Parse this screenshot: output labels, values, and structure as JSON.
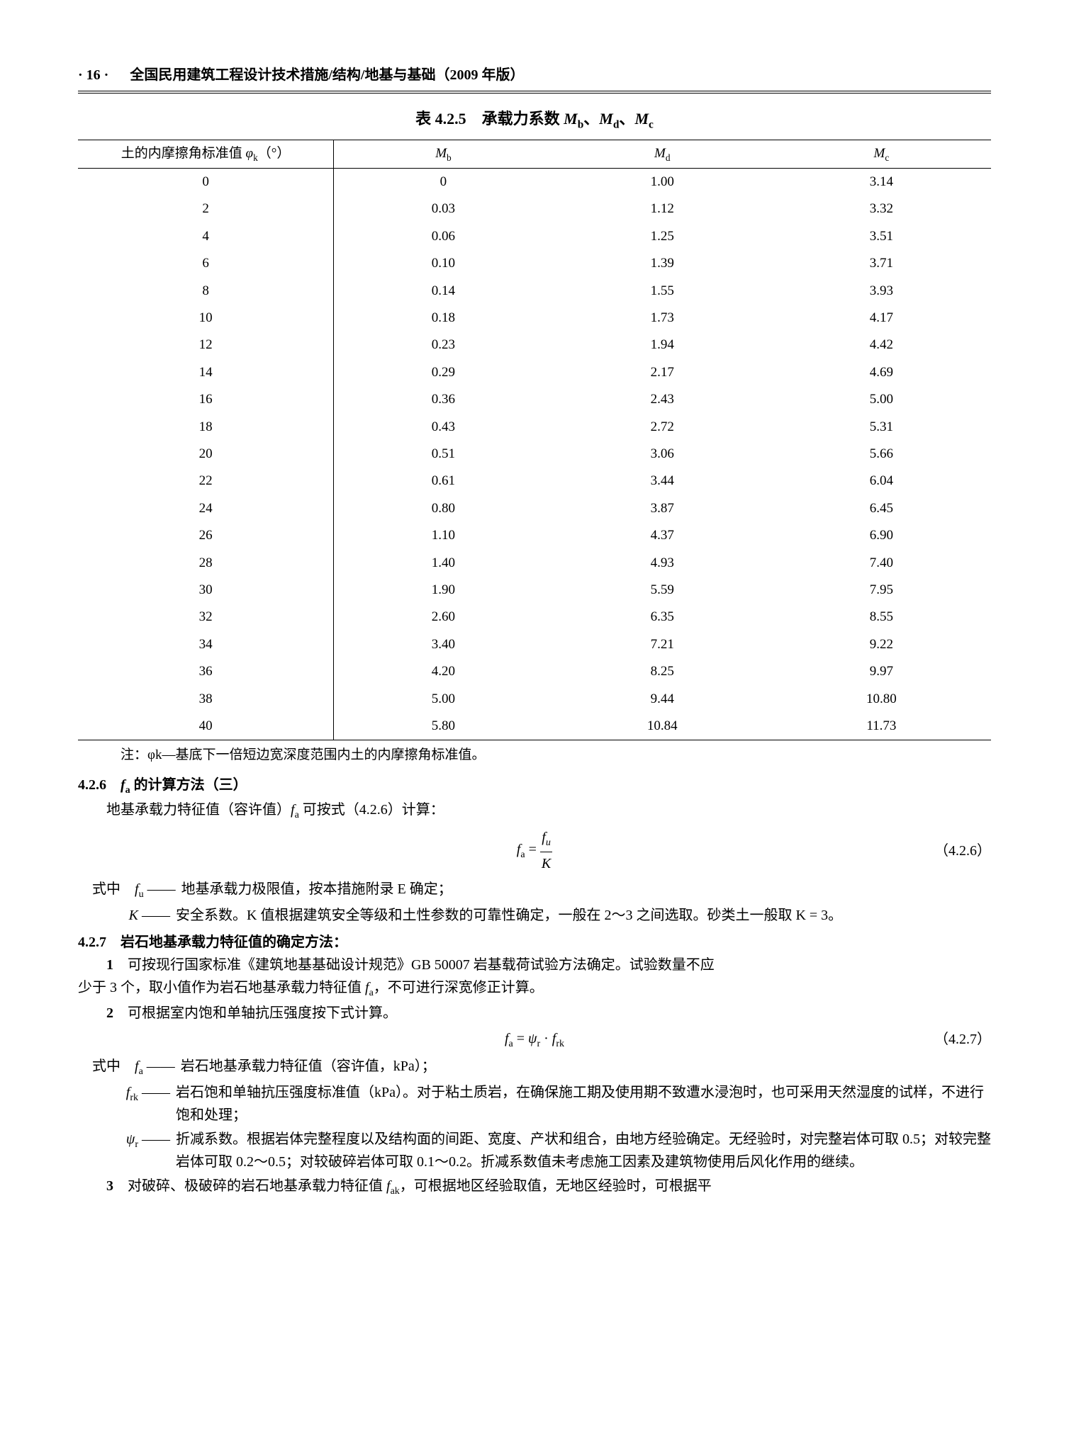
{
  "page_number": "· 16 ·",
  "header_text": "全国民用建筑工程设计技术措施/结构/地基与基础（2009 年版）",
  "table": {
    "title_prefix": "表 4.2.5　承载力系数 ",
    "title_vars": "Mb、Md、Mc",
    "columns": [
      "土的内摩擦角标准值 φk（°）",
      "Mb",
      "Md",
      "Mc"
    ],
    "rows": [
      [
        "0",
        "0",
        "1.00",
        "3.14"
      ],
      [
        "2",
        "0.03",
        "1.12",
        "3.32"
      ],
      [
        "4",
        "0.06",
        "1.25",
        "3.51"
      ],
      [
        "6",
        "0.10",
        "1.39",
        "3.71"
      ],
      [
        "8",
        "0.14",
        "1.55",
        "3.93"
      ],
      [
        "10",
        "0.18",
        "1.73",
        "4.17"
      ],
      [
        "12",
        "0.23",
        "1.94",
        "4.42"
      ],
      [
        "14",
        "0.29",
        "2.17",
        "4.69"
      ],
      [
        "16",
        "0.36",
        "2.43",
        "5.00"
      ],
      [
        "18",
        "0.43",
        "2.72",
        "5.31"
      ],
      [
        "20",
        "0.51",
        "3.06",
        "5.66"
      ],
      [
        "22",
        "0.61",
        "3.44",
        "6.04"
      ],
      [
        "24",
        "0.80",
        "3.87",
        "6.45"
      ],
      [
        "26",
        "1.10",
        "4.37",
        "6.90"
      ],
      [
        "28",
        "1.40",
        "4.93",
        "7.40"
      ],
      [
        "30",
        "1.90",
        "5.59",
        "7.95"
      ],
      [
        "32",
        "2.60",
        "6.35",
        "8.55"
      ],
      [
        "34",
        "3.40",
        "7.21",
        "9.22"
      ],
      [
        "36",
        "4.20",
        "8.25",
        "9.97"
      ],
      [
        "38",
        "5.00",
        "9.44",
        "10.80"
      ],
      [
        "40",
        "5.80",
        "10.84",
        "11.73"
      ]
    ],
    "note": "注：φk—基底下一倍短边宽深度范围内土的内摩擦角标准值。"
  },
  "sec426": {
    "head": "4.2.6　fa 的计算方法（三）",
    "intro": "地基承载力特征值（容许值）fa 可按式（4.2.6）计算：",
    "eq_lhs": "fa =",
    "eq_num": "（4.2.6）",
    "def_lead": "式中",
    "defs": [
      {
        "sym": "fu ——",
        "txt": "地基承载力极限值，按本措施附录 E 确定；"
      },
      {
        "sym": "K ——",
        "txt": "安全系数。K 值根据建筑安全等级和土性参数的可靠性确定，一般在 2～3 之间选取。砂类土一般取 K = 3。"
      }
    ]
  },
  "sec427": {
    "head": "4.2.7　岩石地基承载力特征值的确定方法：",
    "item1_lead": "1",
    "item1": "可按现行国家标准《建筑地基基础设计规范》GB 50007 岩基载荷试验方法确定。试验数量不应少于 3 个，取小值作为岩石地基承载力特征值 fa，不可进行深宽修正计算。",
    "item2_lead": "2",
    "item2": "可根据室内饱和单轴抗压强度按下式计算。",
    "eq": "fa = ψr · frk",
    "eq_num": "（4.2.7）",
    "def_lead": "式中",
    "defs": [
      {
        "sym": "fa ——",
        "txt": "岩石地基承载力特征值（容许值，kPa）；"
      },
      {
        "sym": "frk ——",
        "txt": "岩石饱和单轴抗压强度标准值（kPa）。对于粘土质岩，在确保施工期及使用期不致遭水浸泡时，也可采用天然湿度的试样，不进行饱和处理；"
      },
      {
        "sym": "ψr ——",
        "txt": "折减系数。根据岩体完整程度以及结构面的间距、宽度、产状和组合，由地方经验确定。无经验时，对完整岩体可取 0.5；对较完整岩体可取 0.2～0.5；对较破碎岩体可取 0.1～0.2。折减系数值未考虑施工因素及建筑物使用后风化作用的继续。"
      }
    ],
    "item3_lead": "3",
    "item3": "对破碎、极破碎的岩石地基承载力特征值 fak，可根据地区经验取值，无地区经验时，可根据平"
  }
}
